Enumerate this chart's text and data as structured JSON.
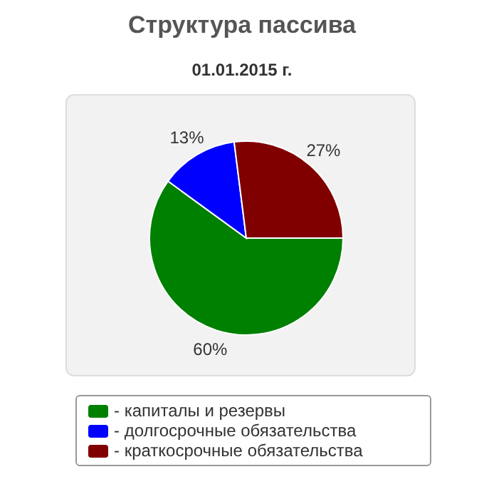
{
  "chart_data": {
    "type": "pie",
    "title": "Структура пассива",
    "subtitle": "01.01.2015 г.",
    "categories": [
      "- капиталы и резервы",
      "- долгосрочные обязательства",
      "- краткосрочные обязательства"
    ],
    "values": [
      60,
      13,
      27
    ],
    "colors": [
      "#008000",
      "#0000ff",
      "#800000"
    ],
    "value_labels": [
      "60%",
      "13%",
      "27%"
    ],
    "legend": "bottom"
  }
}
